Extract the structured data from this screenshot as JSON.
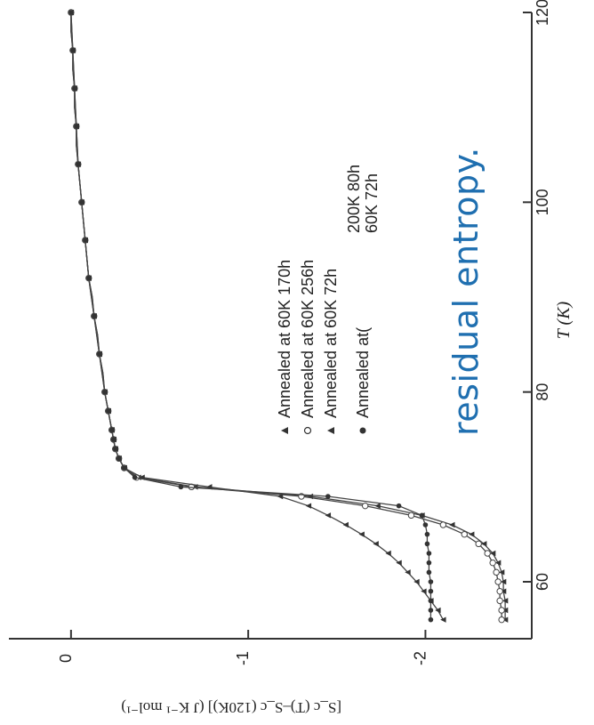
{
  "caption_fragment": "residual entropy.",
  "chart_data": {
    "type": "line",
    "xlabel": "T (K)",
    "ylabel": "[S_c (T)–S_c (120K)] (J K⁻¹ mol⁻¹)",
    "xlim": [
      54,
      120
    ],
    "ylim": [
      -2.6,
      0.2
    ],
    "x_ticks": [
      60,
      80,
      100,
      120
    ],
    "y_ticks": [
      0,
      -1,
      -2
    ],
    "x_tick_labels": [
      "60",
      "80",
      "100",
      "120"
    ],
    "y_tick_labels": [
      "0",
      "-1",
      "-2"
    ],
    "legend": {
      "placement": "center",
      "entries": [
        {
          "marker": "triangle",
          "text": "Annealed  at 60K 170h"
        },
        {
          "marker": "circle-open",
          "text": "Annealed  at 60K 256h"
        },
        {
          "marker": "triangle",
          "text": "Annealed  at 60K  72h"
        },
        {
          "marker": "circle-filled",
          "text": "Annealed  at(",
          "text2": "200K 80h",
          "text3": "60K 72h"
        }
      ]
    },
    "series": [
      {
        "marker": "triangle",
        "x": [
          56,
          57,
          58,
          59,
          60,
          61,
          62,
          63,
          64,
          65,
          66,
          67,
          68,
          69,
          70,
          71,
          72,
          73,
          74,
          75,
          76,
          77,
          78,
          79,
          80,
          82,
          84,
          86,
          88,
          90,
          92,
          94,
          96,
          98,
          100,
          102,
          104,
          106,
          108,
          110,
          112,
          114,
          116,
          118,
          120
        ],
        "y": [
          -2.45,
          -2.45,
          -2.45,
          -2.44,
          -2.44,
          -2.43,
          -2.41,
          -2.38,
          -2.33,
          -2.26,
          -2.15,
          -1.98,
          -1.73,
          -1.35,
          -0.7,
          -0.38,
          -0.3,
          -0.27,
          -0.25,
          -0.24,
          -0.23,
          -0.22,
          -0.21,
          -0.2,
          -0.19,
          -0.18,
          -0.16,
          -0.15,
          -0.13,
          -0.12,
          -0.1,
          -0.09,
          -0.08,
          -0.07,
          -0.06,
          -0.05,
          -0.04,
          -0.03,
          -0.03,
          -0.02,
          -0.02,
          -0.01,
          -0.01,
          0.0,
          0.0
        ]
      },
      {
        "marker": "circle-open",
        "x": [
          56,
          57,
          58,
          59,
          60,
          61,
          62,
          63,
          64,
          65,
          66,
          67,
          68,
          69,
          70,
          71,
          72,
          73,
          74,
          75,
          76,
          77,
          78,
          79,
          80,
          82,
          84,
          86,
          88,
          90,
          92,
          94,
          96,
          98,
          100,
          102,
          104,
          106,
          108,
          110,
          112,
          114,
          116,
          118,
          120
        ],
        "y": [
          -2.43,
          -2.43,
          -2.42,
          -2.42,
          -2.41,
          -2.4,
          -2.38,
          -2.35,
          -2.3,
          -2.22,
          -2.1,
          -1.92,
          -1.66,
          -1.3,
          -0.68,
          -0.37,
          -0.3,
          -0.27,
          -0.25,
          -0.24,
          -0.23,
          -0.22,
          -0.21,
          -0.2,
          -0.19,
          -0.18,
          -0.16,
          -0.15,
          -0.13,
          -0.12,
          -0.1,
          -0.09,
          -0.08,
          -0.07,
          -0.06,
          -0.05,
          -0.04,
          -0.03,
          -0.03,
          -0.02,
          -0.02,
          -0.01,
          -0.01,
          0.0,
          0.0
        ]
      },
      {
        "marker": "triangle",
        "x": [
          56,
          57,
          58,
          59,
          60,
          61,
          62,
          63,
          64,
          65,
          66,
          67,
          68,
          69,
          70,
          71,
          72,
          73,
          74,
          75,
          76,
          78,
          80,
          84,
          88,
          92,
          96,
          100,
          104,
          108,
          112,
          116,
          120
        ],
        "y": [
          -2.1,
          -2.07,
          -2.03,
          -1.99,
          -1.95,
          -1.9,
          -1.85,
          -1.79,
          -1.72,
          -1.64,
          -1.55,
          -1.45,
          -1.34,
          -1.18,
          -0.78,
          -0.4,
          -0.3,
          -0.27,
          -0.25,
          -0.24,
          -0.23,
          -0.21,
          -0.19,
          -0.16,
          -0.13,
          -0.1,
          -0.08,
          -0.06,
          -0.04,
          -0.03,
          -0.02,
          -0.01,
          0.0
        ]
      },
      {
        "marker": "circle-filled",
        "x": [
          56,
          57,
          58,
          59,
          60,
          61,
          62,
          63,
          64,
          65,
          66,
          67,
          68,
          69,
          70,
          71,
          72,
          73,
          74,
          75,
          76,
          78,
          80,
          84,
          88,
          92,
          96,
          100,
          104,
          108,
          112,
          116,
          120
        ],
        "y": [
          -2.03,
          -2.03,
          -2.03,
          -2.03,
          -2.03,
          -2.02,
          -2.02,
          -2.02,
          -2.01,
          -2.01,
          -2.0,
          -1.98,
          -1.85,
          -1.45,
          -0.62,
          -0.36,
          -0.3,
          -0.27,
          -0.25,
          -0.24,
          -0.23,
          -0.21,
          -0.19,
          -0.16,
          -0.13,
          -0.1,
          -0.08,
          -0.06,
          -0.04,
          -0.03,
          -0.02,
          -0.01,
          0.0
        ]
      }
    ]
  }
}
